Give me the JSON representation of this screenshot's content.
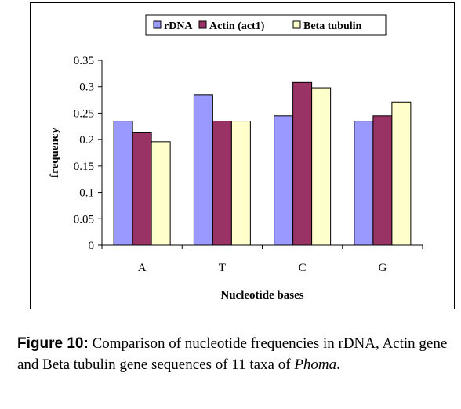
{
  "chart_data": {
    "type": "bar",
    "categories": [
      "A",
      "T",
      "C",
      "G"
    ],
    "series": [
      {
        "name": "rDNA",
        "color": "#9999ff",
        "values": [
          0.235,
          0.285,
          0.245,
          0.235
        ]
      },
      {
        "name": "Actin (act1)",
        "color": "#993366",
        "values": [
          0.213,
          0.235,
          0.308,
          0.245
        ]
      },
      {
        "name": "Beta tubulin",
        "color": "#ffffcc",
        "values": [
          0.196,
          0.235,
          0.298,
          0.271
        ]
      }
    ],
    "xlabel": "Nucleotide bases",
    "ylabel": "frequency",
    "ylim": [
      0,
      0.35
    ],
    "yticks": [
      0,
      0.05,
      0.1,
      0.15,
      0.2,
      0.25,
      0.3,
      0.35
    ],
    "ytick_labels": [
      "0",
      "0.05",
      "0.1",
      "0.15",
      "0.2",
      "0.25",
      "0.3",
      "0.35"
    ],
    "grid": false,
    "legend_position": "top"
  },
  "caption": {
    "label": "Figure 10:",
    "text": " Comparison of nucleotide frequencies in rDNA, Actin gene and Beta tubulin gene sequences of 11 taxa of ",
    "emphasis": "Phoma",
    "end": "."
  }
}
